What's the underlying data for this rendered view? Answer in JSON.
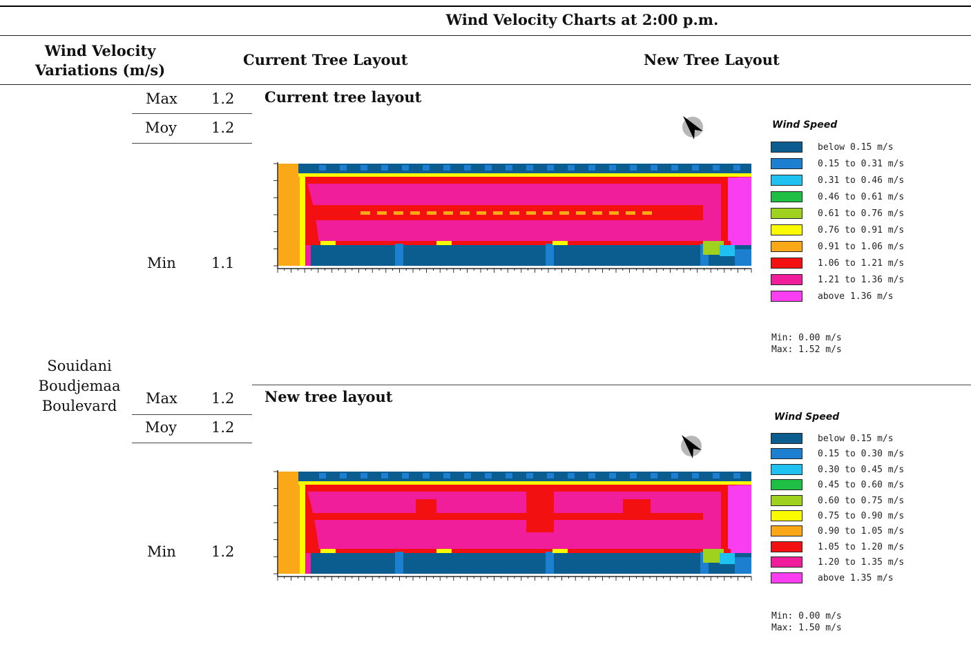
{
  "table": {
    "title": "Wind Velocity Charts at 2:00 p.m.",
    "col_variations": "Wind Velocity Variations (m/s)",
    "col_variations_line1": "Wind Velocity",
    "col_variations_line2": "Variations (m/s)",
    "col_current": "Current Tree Layout",
    "col_new": "New Tree Layout",
    "location_line1": "Souidani",
    "location_line2": "Boudjemaa",
    "location_line3": "Boulevard"
  },
  "rows": [
    {
      "label": "Current tree layout",
      "stats": [
        {
          "name": "Max",
          "value": "1.2"
        },
        {
          "name": "Moy",
          "value": "1.2"
        },
        {
          "name": "Min",
          "value": "1.1"
        }
      ],
      "legend": {
        "title": "Wind Speed",
        "items": [
          {
            "label": "below 0.15 m/s",
            "color": "#0b5d8f"
          },
          {
            "label": "0.15 to 0.31 m/s",
            "color": "#1c7fd0"
          },
          {
            "label": "0.31 to 0.46 m/s",
            "color": "#1ec1f0"
          },
          {
            "label": "0.46 to 0.61 m/s",
            "color": "#1fbf45"
          },
          {
            "label": "0.61 to 0.76 m/s",
            "color": "#9fd21e"
          },
          {
            "label": "0.76 to 0.91 m/s",
            "color": "#fafa00"
          },
          {
            "label": "0.91 to 1.06 m/s",
            "color": "#fba818"
          },
          {
            "label": "1.06 to 1.21 m/s",
            "color": "#f21010"
          },
          {
            "label": "1.21 to 1.36 m/s",
            "color": "#f01e9a"
          },
          {
            "label": "above 1.36 m/s",
            "color": "#f83ef0"
          }
        ],
        "min": "Min: 0.00 m/s",
        "max": "Max: 1.52 m/s"
      }
    },
    {
      "label": "New tree layout",
      "stats": [
        {
          "name": "Max",
          "value": "1.2"
        },
        {
          "name": "Moy",
          "value": "1.2"
        },
        {
          "name": "Min",
          "value": "1.2"
        }
      ],
      "legend": {
        "title": "Wind Speed",
        "items": [
          {
            "label": "below 0.15 m/s",
            "color": "#0b5d8f"
          },
          {
            "label": "0.15 to 0.30 m/s",
            "color": "#1c7fd0"
          },
          {
            "label": "0.30 to 0.45 m/s",
            "color": "#1ec1f0"
          },
          {
            "label": "0.45 to 0.60 m/s",
            "color": "#1fbf45"
          },
          {
            "label": "0.60 to 0.75 m/s",
            "color": "#9fd21e"
          },
          {
            "label": "0.75 to 0.90 m/s",
            "color": "#fafa00"
          },
          {
            "label": "0.90 to 1.05 m/s",
            "color": "#fba818"
          },
          {
            "label": "1.05 to 1.20 m/s",
            "color": "#f21010"
          },
          {
            "label": "1.20 to 1.35 m/s",
            "color": "#f01e9a"
          },
          {
            "label": "above 1.35 m/s",
            "color": "#f83ef0"
          }
        ],
        "min": "Min: 0.00 m/s",
        "max": "Max: 1.50 m/s"
      }
    }
  ]
}
